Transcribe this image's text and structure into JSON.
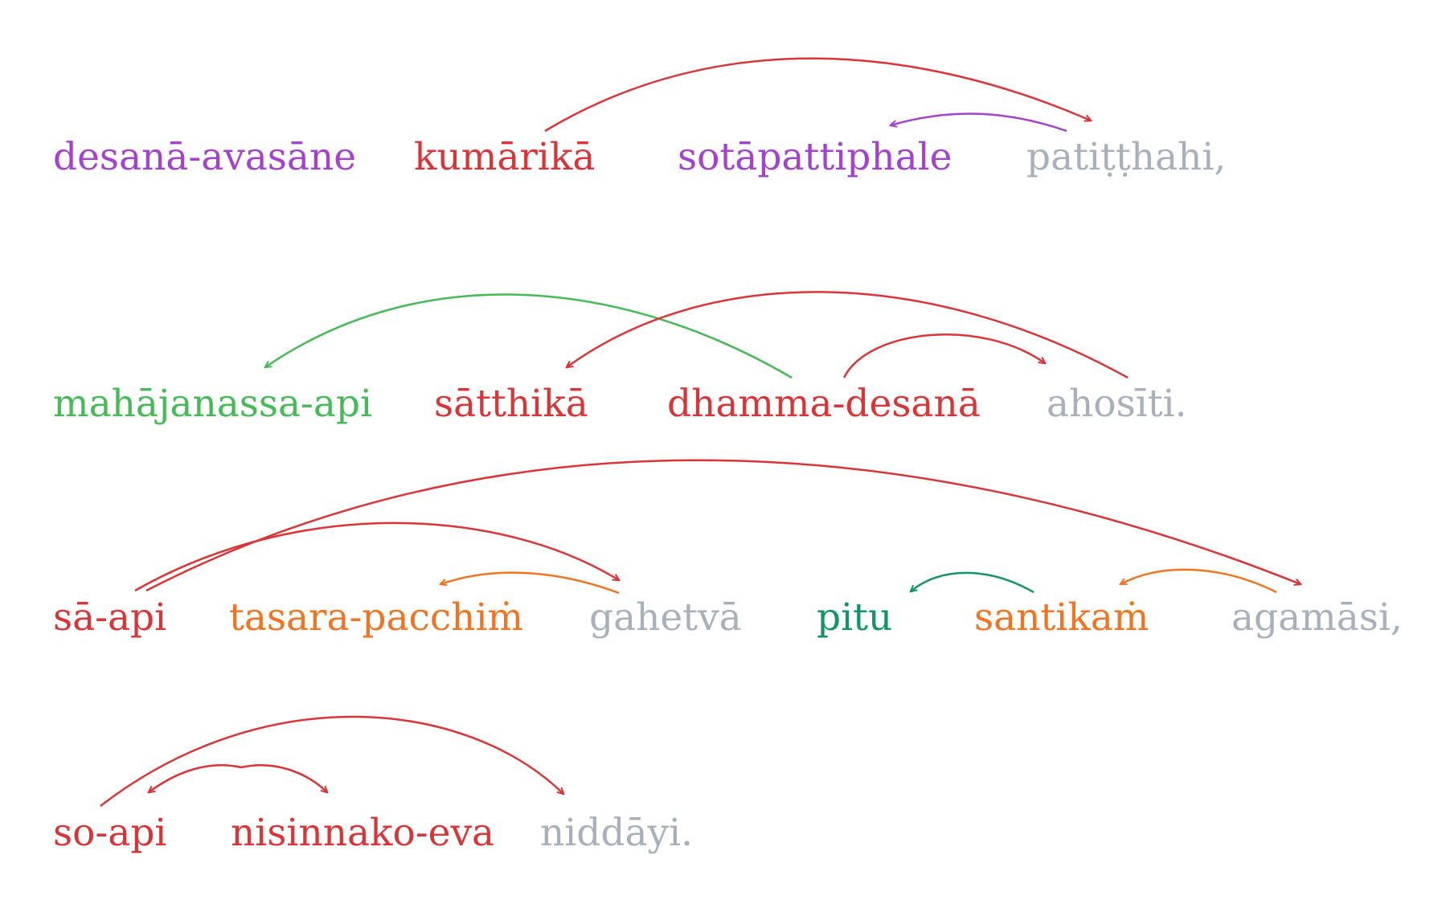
{
  "colors": {
    "red": "#db3436",
    "purple": "#a541cf",
    "green": "#44bb55",
    "teal": "#129466",
    "orange": "#f27420",
    "gray": "#a9b0ba"
  },
  "lines": [
    {
      "words": [
        {
          "text": "desanā-avasāne",
          "color": "purple"
        },
        {
          "text": "kumārikā",
          "color": "red"
        },
        {
          "text": "sotāpattiphale",
          "color": "purple"
        },
        {
          "text": "patiṭṭhahi,",
          "color": "gray"
        }
      ],
      "arcs": [
        {
          "from": 1,
          "to": 3,
          "color": "red"
        },
        {
          "from": 3,
          "to": 2,
          "color": "purple"
        }
      ]
    },
    {
      "words": [
        {
          "text": "mahājanassa-api",
          "color": "green"
        },
        {
          "text": "sātthikā",
          "color": "red"
        },
        {
          "text": "dhamma-desanā",
          "color": "red"
        },
        {
          "text": "ahosīti.",
          "color": "gray"
        }
      ],
      "arcs": [
        {
          "from": 2,
          "to": 0,
          "color": "green"
        },
        {
          "from": 3,
          "to": 1,
          "color": "red"
        },
        {
          "from": 2,
          "to": 3,
          "color": "red"
        }
      ]
    },
    {
      "words": [
        {
          "text": "sā-api",
          "color": "red"
        },
        {
          "text": "tasara-pacchiṁ",
          "color": "orange"
        },
        {
          "text": "gahetvā",
          "color": "gray"
        },
        {
          "text": "pitu",
          "color": "teal"
        },
        {
          "text": "santikaṁ",
          "color": "orange"
        },
        {
          "text": "agamāsi,",
          "color": "gray"
        }
      ],
      "arcs": [
        {
          "from": 0,
          "to": 5,
          "color": "red"
        },
        {
          "from": 0,
          "to": 2,
          "color": "red"
        },
        {
          "from": 2,
          "to": 1,
          "color": "orange"
        },
        {
          "from": 4,
          "to": 3,
          "color": "teal"
        },
        {
          "from": 5,
          "to": 4,
          "color": "orange"
        }
      ]
    },
    {
      "words": [
        {
          "text": "so-api",
          "color": "red"
        },
        {
          "text": "nisinnako-eva",
          "color": "red"
        },
        {
          "text": "niddāyi.",
          "color": "gray"
        }
      ],
      "arcs": [
        {
          "from": 0,
          "to": 2,
          "color": "red"
        },
        {
          "from": 1,
          "to": 0,
          "color": "red"
        },
        {
          "from": 0,
          "to": 1,
          "color": "red"
        }
      ]
    }
  ]
}
